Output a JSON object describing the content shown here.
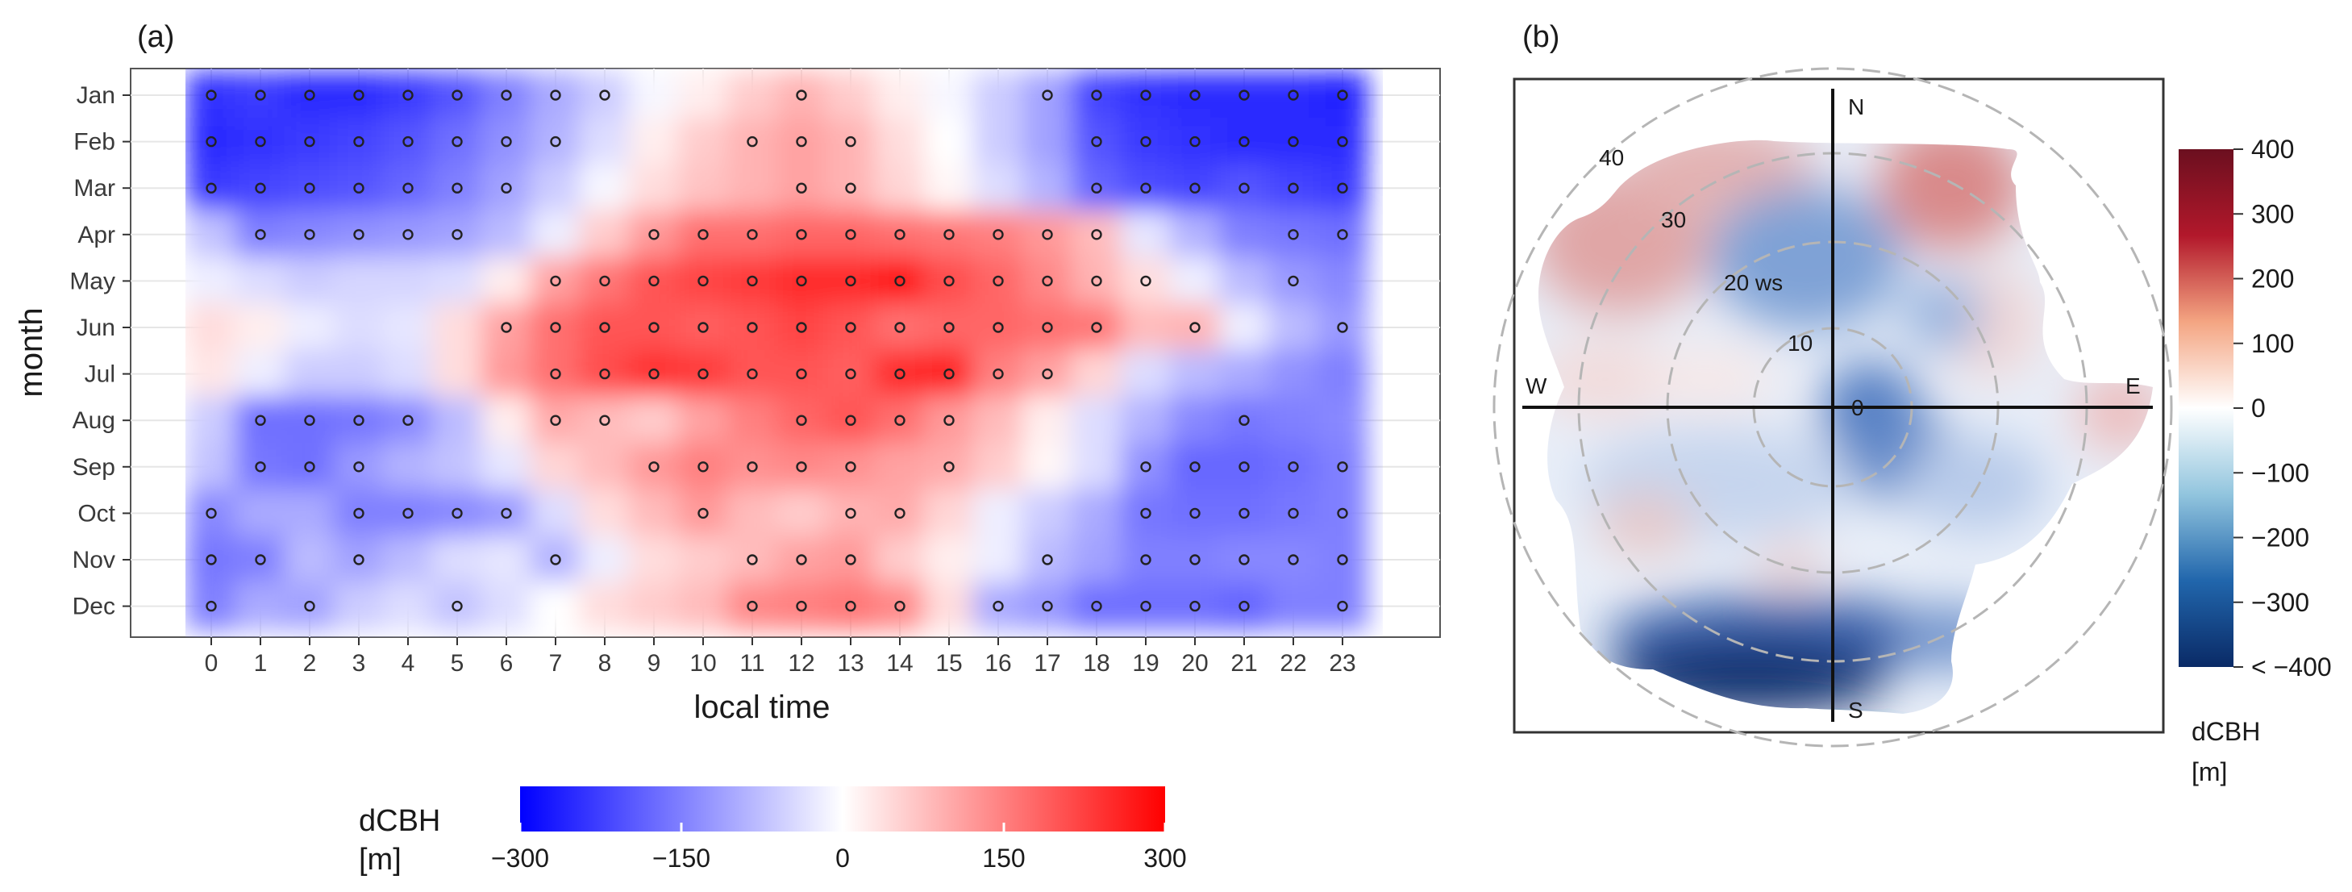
{
  "chart_data": [
    {
      "panel": "(a)",
      "type": "heatmap",
      "xlabel": "local time",
      "ylabel": "month",
      "x": [
        0,
        1,
        2,
        3,
        4,
        5,
        6,
        7,
        8,
        9,
        10,
        11,
        12,
        13,
        14,
        15,
        16,
        17,
        18,
        19,
        20,
        21,
        22,
        23
      ],
      "y": [
        "Jan",
        "Feb",
        "Mar",
        "Apr",
        "May",
        "Jun",
        "Jul",
        "Aug",
        "Sep",
        "Oct",
        "Nov",
        "Dec"
      ],
      "z": [
        [
          -240,
          -230,
          -250,
          -250,
          -230,
          -200,
          -150,
          -100,
          -60,
          -10,
          20,
          60,
          90,
          60,
          20,
          -10,
          -60,
          -110,
          -220,
          -240,
          -250,
          -250,
          -250,
          -260
        ],
        [
          -250,
          -240,
          -230,
          -220,
          -200,
          -170,
          -130,
          -90,
          -40,
          20,
          60,
          90,
          110,
          90,
          40,
          0,
          -60,
          -110,
          -200,
          -230,
          -240,
          -250,
          -250,
          -250
        ],
        [
          -230,
          -220,
          -210,
          -200,
          -180,
          -150,
          -110,
          -60,
          -10,
          40,
          70,
          90,
          110,
          90,
          50,
          10,
          -40,
          -90,
          -180,
          -210,
          -220,
          -200,
          -220,
          -230
        ],
        [
          -70,
          -150,
          -140,
          -130,
          -120,
          -110,
          -80,
          -20,
          60,
          120,
          170,
          170,
          180,
          180,
          170,
          160,
          150,
          120,
          80,
          -30,
          -90,
          -150,
          -160,
          -170
        ],
        [
          -20,
          -40,
          -60,
          -50,
          -50,
          -40,
          20,
          110,
          160,
          200,
          220,
          230,
          250,
          250,
          270,
          210,
          180,
          140,
          90,
          40,
          -20,
          -80,
          -120,
          -140
        ],
        [
          40,
          20,
          -20,
          -40,
          -30,
          40,
          110,
          170,
          200,
          200,
          190,
          200,
          220,
          200,
          170,
          180,
          180,
          170,
          160,
          80,
          90,
          -20,
          -80,
          -120
        ],
        [
          30,
          -20,
          -60,
          -60,
          -40,
          40,
          120,
          170,
          210,
          240,
          230,
          200,
          200,
          190,
          250,
          260,
          150,
          110,
          50,
          -40,
          -80,
          -100,
          -130,
          -150
        ],
        [
          -60,
          -170,
          -170,
          -160,
          -140,
          -80,
          20,
          100,
          80,
          60,
          110,
          150,
          180,
          200,
          170,
          120,
          80,
          20,
          -40,
          -90,
          -140,
          -160,
          -150,
          -140
        ],
        [
          -70,
          -160,
          -170,
          -120,
          -90,
          -70,
          -30,
          50,
          80,
          120,
          150,
          130,
          140,
          130,
          110,
          100,
          60,
          10,
          -40,
          -130,
          -180,
          -180,
          -170,
          -150
        ],
        [
          -140,
          -100,
          -100,
          -150,
          -150,
          -140,
          -120,
          -40,
          40,
          80,
          120,
          80,
          60,
          90,
          100,
          50,
          -20,
          -60,
          -100,
          -160,
          -170,
          -170,
          -160,
          -150
        ],
        [
          -160,
          -150,
          -80,
          -110,
          -80,
          -40,
          -30,
          -90,
          -20,
          40,
          60,
          80,
          110,
          120,
          60,
          20,
          -20,
          -80,
          -110,
          -150,
          -150,
          -140,
          -140,
          -150
        ],
        [
          -150,
          -100,
          -110,
          -60,
          -40,
          -70,
          -40,
          0,
          40,
          60,
          80,
          140,
          150,
          160,
          140,
          40,
          -100,
          -120,
          -170,
          -170,
          -170,
          -180,
          -150,
          -150
        ]
      ],
      "significant": [
        [
          0,
          1,
          2,
          3,
          4,
          5,
          6,
          7,
          8,
          12,
          17,
          18,
          19,
          20,
          21,
          22,
          23
        ],
        [
          0,
          1,
          2,
          3,
          4,
          5,
          6,
          7,
          11,
          12,
          13,
          18,
          19,
          20,
          21,
          22,
          23
        ],
        [
          0,
          1,
          2,
          3,
          4,
          5,
          6,
          12,
          13,
          18,
          19,
          20,
          21,
          22,
          23
        ],
        [
          1,
          2,
          3,
          4,
          5,
          9,
          10,
          11,
          12,
          13,
          14,
          15,
          16,
          17,
          18,
          22,
          23
        ],
        [
          7,
          8,
          9,
          10,
          11,
          12,
          13,
          14,
          15,
          16,
          17,
          18,
          19,
          22
        ],
        [
          6,
          7,
          8,
          9,
          10,
          11,
          12,
          13,
          14,
          15,
          16,
          17,
          18,
          20,
          23
        ],
        [
          7,
          8,
          9,
          10,
          11,
          12,
          13,
          14,
          15,
          16,
          17
        ],
        [
          1,
          2,
          3,
          4,
          7,
          8,
          12,
          13,
          14,
          15,
          21
        ],
        [
          1,
          2,
          3,
          9,
          10,
          11,
          12,
          13,
          15,
          19,
          20,
          21,
          22,
          23
        ],
        [
          0,
          3,
          4,
          5,
          6,
          10,
          13,
          14,
          19,
          20,
          21,
          22,
          23
        ],
        [
          0,
          1,
          3,
          7,
          11,
          12,
          13,
          17,
          19,
          20,
          21,
          22,
          23
        ],
        [
          0,
          2,
          5,
          11,
          12,
          13,
          14,
          16,
          17,
          18,
          19,
          20,
          21,
          23
        ]
      ],
      "legend": {
        "title_line1": "dCBH",
        "title_line2": "[m]",
        "range": [
          -300,
          300
        ],
        "ticks": [
          -300,
          -150,
          0,
          150,
          300
        ],
        "tick_labels": [
          "−300",
          "−150",
          "0",
          "150",
          "300"
        ],
        "colors": [
          "#0000ff",
          "#ffffff",
          "#ff0000"
        ]
      }
    },
    {
      "panel": "(b)",
      "type": "polar-heatmap",
      "directions": {
        "north": "N",
        "south": "S",
        "west": "W",
        "east": "E"
      },
      "radial_ticks": [
        0,
        10,
        20,
        30,
        40
      ],
      "radial_tick_labels": [
        "0",
        "10",
        "20 ws",
        "30",
        "40"
      ],
      "radial_unit": "ws",
      "colorbar": {
        "range": [
          -400,
          400
        ],
        "ticks": [
          400,
          300,
          200,
          100,
          0,
          -100,
          -200,
          -300,
          -400
        ],
        "tick_labels": [
          "400",
          "300",
          "200",
          "100",
          "0",
          "−100",
          "−200",
          "−300",
          "< −400"
        ],
        "colors": [
          "#6b0f1f",
          "#b2182b",
          "#f4a582",
          "#ffffff",
          "#92c5de",
          "#2166ac",
          "#0a2a66"
        ],
        "title_line1": "dCBH",
        "title_line2": "[m]"
      }
    }
  ]
}
